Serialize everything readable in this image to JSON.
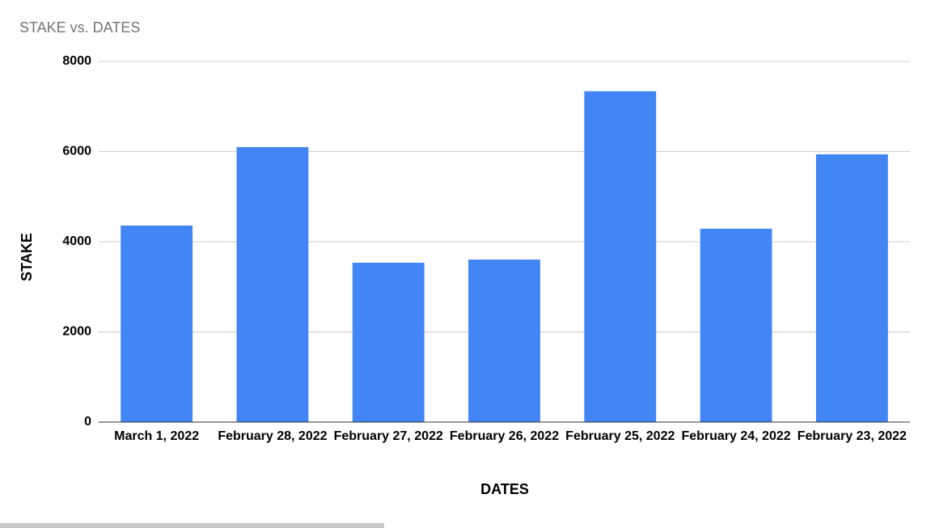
{
  "chart_data": {
    "type": "bar",
    "title": "STAKE vs. DATES",
    "x_label": "DATES",
    "y_label": "STAKE",
    "categories": [
      "March 1, 2022",
      "February 28, 2022",
      "February 27, 2022",
      "February 26, 2022",
      "February 25, 2022",
      "February 24, 2022",
      "February 23, 2022"
    ],
    "values": [
      4360,
      6100,
      3535,
      3605,
      7340,
      4290,
      5940
    ],
    "color": "#4285f4",
    "ylim": [
      0,
      8000
    ],
    "yticks": [
      0,
      2000,
      4000,
      6000,
      8000
    ],
    "grid": true
  }
}
